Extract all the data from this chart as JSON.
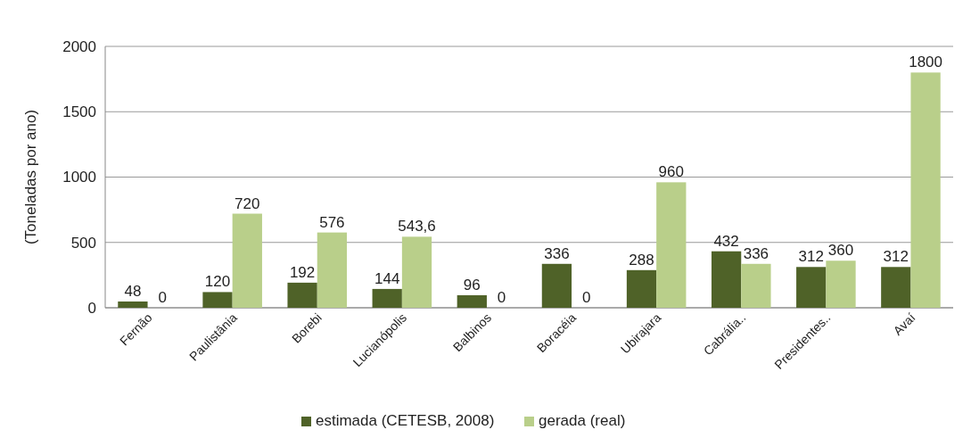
{
  "chart_data": {
    "type": "bar",
    "ylabel": "(Toneladas por ano)",
    "categories": [
      "Fernão",
      "Paulistânia",
      "Borebi",
      "Lucianópolis",
      "Balbinos",
      "Boracéia",
      "Ubirajara",
      "Cabrália..",
      "Presidentes..",
      "Avaí"
    ],
    "series": [
      {
        "name": "estimada (CETESB, 2008)",
        "color": "#4f6228",
        "values": [
          48,
          120,
          192,
          144,
          96,
          336,
          288,
          432,
          312,
          312
        ],
        "value_labels": [
          "48",
          "120",
          "192",
          "144",
          "96",
          "336",
          "288",
          "432",
          "312",
          "312"
        ]
      },
      {
        "name": "gerada (real)",
        "color": "#b9cf8a",
        "values": [
          0,
          720,
          576,
          543.6,
          0,
          0,
          960,
          336,
          360,
          1800
        ],
        "value_labels": [
          "0",
          "720",
          "576",
          "543,6",
          "0",
          "0",
          "960",
          "336",
          "360",
          "1800"
        ]
      }
    ],
    "ylim": [
      0,
      2000
    ],
    "yticks": [
      0,
      500,
      1000,
      1500,
      2000
    ],
    "grid": "y",
    "legend": "bottom"
  }
}
